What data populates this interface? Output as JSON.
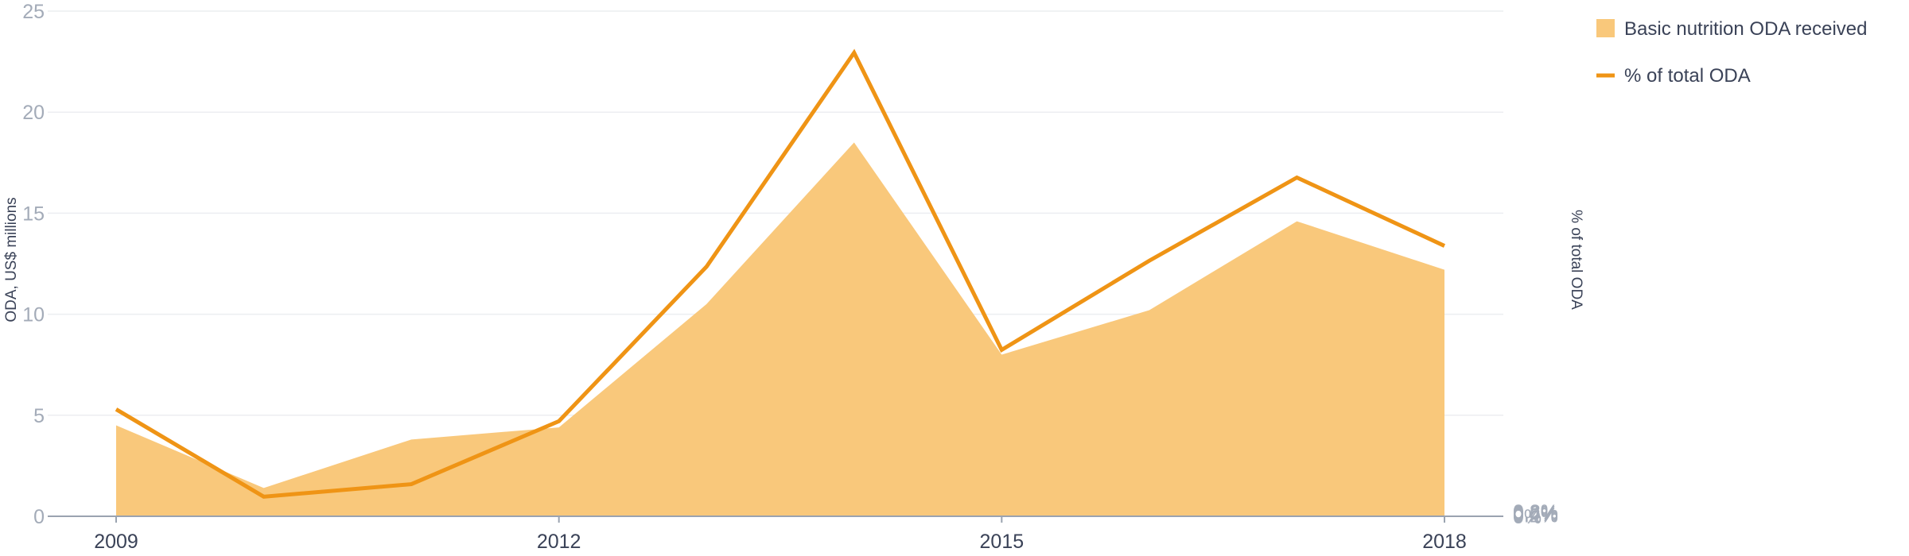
{
  "chart_data": {
    "type": "area",
    "x": [
      2009,
      2010,
      2011,
      2012,
      2013,
      2014,
      2015,
      2016,
      2017,
      2018
    ],
    "x_tick_labels": [
      "2009",
      "2012",
      "2015",
      "2018"
    ],
    "series": [
      {
        "name": "Basic nutrition ODA received",
        "type": "area",
        "axis": "left",
        "color": "#f9c87b",
        "values": [
          4.5,
          1.4,
          3.8,
          4.4,
          10.5,
          18.5,
          8.0,
          10.2,
          14.6,
          12.2
        ]
      },
      {
        "name": "% of total ODA",
        "type": "line",
        "axis": "right",
        "color": "#ef9415",
        "values": [
          0.18,
          0.033,
          0.054,
          0.16,
          0.42,
          0.78,
          0.28,
          0.43,
          0.57,
          0.455
        ]
      }
    ],
    "y_left": {
      "label": "ODA, US$ millions",
      "ticks": [
        "0",
        "5",
        "10",
        "15",
        "20",
        "25"
      ],
      "lim": [
        0,
        25
      ]
    },
    "y_right": {
      "label": "% of total ODA",
      "ticks": [
        "0%",
        "0.2%",
        "0.4%",
        "0.6%",
        "0.8%"
      ],
      "lim": [
        0,
        0.85
      ]
    },
    "grid": true,
    "legend_position": "top-right"
  }
}
